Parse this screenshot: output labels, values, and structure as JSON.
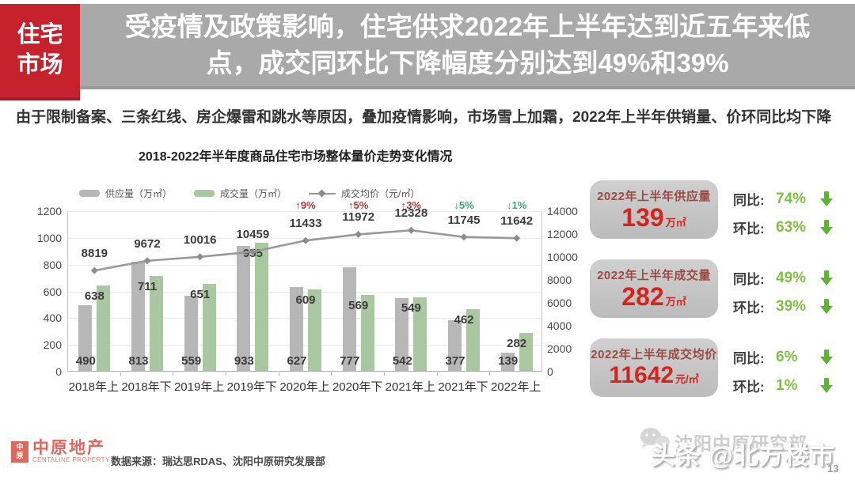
{
  "sidebar_tab": {
    "label": "住宅市场"
  },
  "banner": {
    "title": "受疫情及政策影响，住宅供求2022年上半年达到近五年来低点，成交同环比下降幅度分别达到49%和39%",
    "bg": "#a9a9a9",
    "tab_bg": "#c5222e"
  },
  "subtitle": "由于限制备案、三条红线、房企爆雷和跳水等原因，叠加疫情影响，市场雪上加霜，2022年上半年供销量、价环同比均下降",
  "chart_data": {
    "type": "bar+line",
    "title": "2018-2022年半年度商品住宅市场整体量价走势变化情况",
    "categories": [
      "2018年上",
      "2018年下",
      "2019年上",
      "2019年下",
      "2020年上",
      "2020年下",
      "2021年上",
      "2021年下",
      "2022年上"
    ],
    "series": [
      {
        "name": "供应量（万㎡）",
        "type": "bar",
        "axis": "left",
        "color": "#b7b7b7",
        "values": [
          490,
          813,
          559,
          933,
          627,
          777,
          542,
          377,
          139
        ]
      },
      {
        "name": "成交量（万㎡）",
        "type": "bar",
        "axis": "left",
        "color": "#a9c7a1",
        "values": [
          638,
          711,
          651,
          955,
          609,
          569,
          549,
          462,
          282
        ]
      },
      {
        "name": "成交均价（元/㎡）",
        "type": "line",
        "axis": "right",
        "color": "#999999",
        "values": [
          8819,
          9672,
          10016,
          10459,
          11433,
          11972,
          12328,
          11745,
          11642
        ]
      }
    ],
    "annotations": [
      {
        "category_index": 4,
        "text": "↑9%",
        "color": "#b5352e"
      },
      {
        "category_index": 5,
        "text": "↑5%",
        "color": "#b5352e"
      },
      {
        "category_index": 6,
        "text": "↑3%",
        "color": "#b5352e"
      },
      {
        "category_index": 7,
        "text": "↓5%",
        "color": "#2fae72"
      },
      {
        "category_index": 8,
        "text": "↓1%",
        "color": "#2fae72"
      }
    ],
    "left_axis": {
      "ticks": [
        "1200",
        "1000",
        "800",
        "600",
        "400",
        "200",
        "0"
      ],
      "max": 1200
    },
    "right_axis": {
      "ticks": [
        "14000",
        "12000",
        "10000",
        "8000",
        "6000",
        "4000",
        "2000",
        "0"
      ],
      "max": 14000
    },
    "grid": true,
    "legend_position": "top-left"
  },
  "stat_boxes": [
    {
      "title": "2022年上半年供应量",
      "value": "139",
      "unit": "万㎡",
      "metrics": [
        {
          "label": "同比:",
          "value": "74%"
        },
        {
          "label": "环比:",
          "value": "63%"
        }
      ]
    },
    {
      "title": "2022年上半年成交量",
      "value": "282",
      "unit": "万㎡",
      "metrics": [
        {
          "label": "同比:",
          "value": "49%"
        },
        {
          "label": "环比:",
          "value": "39%"
        }
      ]
    },
    {
      "title": "2022年上半年成交均价",
      "value": "11642",
      "unit": "元/㎡",
      "metrics": [
        {
          "label": "同比:",
          "value": "6%"
        },
        {
          "label": "环比:",
          "value": "1%"
        }
      ]
    }
  ],
  "footer": {
    "logo_badge": "中原",
    "logo_title": "中原地产",
    "logo_subtitle": "CENTALINE PROPERTY",
    "source": "数据来源：瑞达思RDAS、沈阳中原研究发展部",
    "watermark_research": "沈阳中原研究部",
    "watermark_toutiao": "头条 @北方楼市",
    "page_number": "13"
  },
  "colors": {
    "accent_red": "#c5222e",
    "value_red": "#d42420",
    "box_title_red": "#9a4a43",
    "metric_green": "#7ec142",
    "arrow_green": "#5cb531",
    "logo_red": "#dd685e"
  }
}
